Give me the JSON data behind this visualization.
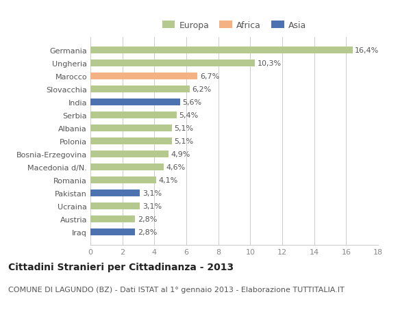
{
  "categories": [
    "Germania",
    "Ungheria",
    "Marocco",
    "Slovacchia",
    "India",
    "Serbia",
    "Albania",
    "Polonia",
    "Bosnia-Erzegovina",
    "Macedonia d/N.",
    "Romania",
    "Pakistan",
    "Ucraina",
    "Austria",
    "Iraq"
  ],
  "values": [
    16.4,
    10.3,
    6.7,
    6.2,
    5.6,
    5.4,
    5.1,
    5.1,
    4.9,
    4.6,
    4.1,
    3.1,
    3.1,
    2.8,
    2.8
  ],
  "labels": [
    "16,4%",
    "10,3%",
    "6,7%",
    "6,2%",
    "5,6%",
    "5,4%",
    "5,1%",
    "5,1%",
    "4,9%",
    "4,6%",
    "4,1%",
    "3,1%",
    "3,1%",
    "2,8%",
    "2,8%"
  ],
  "continents": [
    "Europa",
    "Europa",
    "Africa",
    "Europa",
    "Asia",
    "Europa",
    "Europa",
    "Europa",
    "Europa",
    "Europa",
    "Europa",
    "Asia",
    "Europa",
    "Europa",
    "Asia"
  ],
  "colors": {
    "Europa": "#b5c98e",
    "Africa": "#f4b183",
    "Asia": "#4c72b0"
  },
  "xlim": [
    0,
    18
  ],
  "xticks": [
    0,
    2,
    4,
    6,
    8,
    10,
    12,
    14,
    16,
    18
  ],
  "title": "Cittadini Stranieri per Cittadinanza - 2013",
  "subtitle": "COMUNE DI LAGUNDO (BZ) - Dati ISTAT al 1° gennaio 2013 - Elaborazione TUTTITALIA.IT",
  "background_color": "#ffffff",
  "grid_color": "#cccccc",
  "bar_height": 0.55,
  "title_fontsize": 10,
  "subtitle_fontsize": 8,
  "label_fontsize": 8,
  "value_fontsize": 8,
  "legend_fontsize": 9,
  "legend_order": [
    "Europa",
    "Africa",
    "Asia"
  ]
}
